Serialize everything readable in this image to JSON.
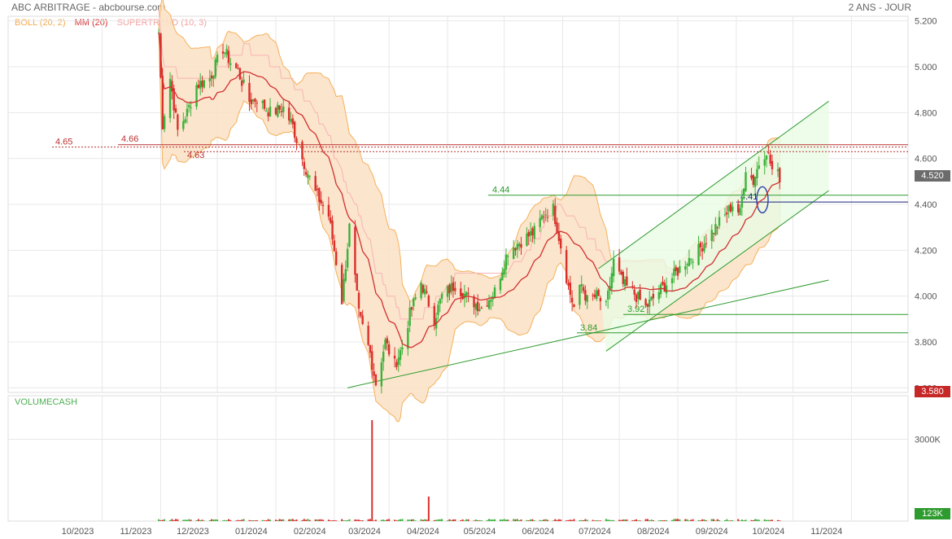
{
  "header": {
    "title": "ABC ARBITRAGE - abcbourse.com",
    "period": "2 ANS - JOUR"
  },
  "legend": {
    "boll": "BOLL (20, 2)",
    "mm": "MM (20)",
    "supertrend": "SUPERTREND (10, 3)",
    "volume": "VOLUMECASH"
  },
  "colors": {
    "boll_fill": "#fbe3c8",
    "boll_line": "#f5a94a",
    "mm": "#d32f2f",
    "supertrend": "#f7b4b4",
    "supertrend_green": "#8be07a",
    "up": "#3bb23b",
    "down": "#d9302c",
    "trend": "#2e9b2e"
  },
  "chart_data": {
    "type": "candlestick",
    "x_ticks": [
      "10/2023",
      "11/2023",
      "12/2023",
      "01/2024",
      "02/2024",
      "03/2024",
      "04/2024",
      "05/2024",
      "06/2024",
      "07/2024",
      "08/2024",
      "09/2024",
      "10/2024",
      "11/2024"
    ],
    "y_ticks": [
      "5.200",
      "5.000",
      "4.800",
      "4.600",
      "4.400",
      "4.200",
      "4.000",
      "3.800",
      "3.600"
    ],
    "ylim": [
      3.58,
      5.22
    ],
    "last_price": "4.520",
    "low_tag": "3.580",
    "levels": [
      {
        "label": "4.65",
        "value": 4.65
      },
      {
        "label": "4.66",
        "value": 4.66
      },
      {
        "label": "4.63",
        "value": 4.63
      },
      {
        "label": "4.44",
        "value": 4.44
      },
      {
        "label": "4.41",
        "value": 4.41
      },
      {
        "label": "3.92",
        "value": 3.92
      },
      {
        "label": "3.84",
        "value": 3.84
      }
    ],
    "close_path": [
      [
        "2023-10-31",
        5.15
      ],
      [
        "2023-11-02",
        4.75
      ],
      [
        "2023-11-06",
        4.95
      ],
      [
        "2023-11-10",
        4.72
      ],
      [
        "2023-11-15",
        4.8
      ],
      [
        "2023-11-20",
        4.92
      ],
      [
        "2023-11-27",
        4.95
      ],
      [
        "2023-12-04",
        5.08
      ],
      [
        "2023-12-08",
        5.02
      ],
      [
        "2023-12-12",
        4.98
      ],
      [
        "2023-12-18",
        4.85
      ],
      [
        "2023-12-22",
        4.86
      ],
      [
        "2023-12-29",
        4.8
      ],
      [
        "2024-01-05",
        4.82
      ],
      [
        "2024-01-10",
        4.74
      ],
      [
        "2024-01-15",
        4.6
      ],
      [
        "2024-01-22",
        4.45
      ],
      [
        "2024-01-29",
        4.35
      ],
      [
        "2024-02-02",
        4.15
      ],
      [
        "2024-02-05",
        3.98
      ],
      [
        "2024-02-09",
        4.3
      ],
      [
        "2024-02-14",
        3.92
      ],
      [
        "2024-02-20",
        3.75
      ],
      [
        "2024-02-23",
        3.62
      ],
      [
        "2024-02-28",
        3.8
      ],
      [
        "2024-03-04",
        3.7
      ],
      [
        "2024-03-08",
        3.78
      ],
      [
        "2024-03-12",
        3.92
      ],
      [
        "2024-03-18",
        4.06
      ],
      [
        "2024-03-25",
        3.9
      ],
      [
        "2024-03-29",
        4.0
      ],
      [
        "2024-04-05",
        4.05
      ],
      [
        "2024-04-12",
        3.99
      ],
      [
        "2024-04-19",
        3.95
      ],
      [
        "2024-04-26",
        4.02
      ],
      [
        "2024-05-03",
        4.2
      ],
      [
        "2024-05-10",
        4.24
      ],
      [
        "2024-05-17",
        4.28
      ],
      [
        "2024-05-22",
        4.36
      ],
      [
        "2024-05-27",
        4.38
      ],
      [
        "2024-05-31",
        4.22
      ],
      [
        "2024-06-04",
        4.04
      ],
      [
        "2024-06-07",
        3.95
      ],
      [
        "2024-06-11",
        4.05
      ],
      [
        "2024-06-14",
        3.98
      ],
      [
        "2024-06-19",
        4.0
      ],
      [
        "2024-06-24",
        3.95
      ],
      [
        "2024-06-28",
        4.15
      ],
      [
        "2024-07-03",
        4.05
      ],
      [
        "2024-07-08",
        4.02
      ],
      [
        "2024-07-15",
        3.95
      ],
      [
        "2024-07-22",
        4.02
      ],
      [
        "2024-07-29",
        4.08
      ],
      [
        "2024-08-05",
        4.15
      ],
      [
        "2024-08-12",
        4.2
      ],
      [
        "2024-08-19",
        4.28
      ],
      [
        "2024-08-26",
        4.35
      ],
      [
        "2024-08-30",
        4.4
      ],
      [
        "2024-09-03",
        4.36
      ],
      [
        "2024-09-06",
        4.56
      ],
      [
        "2024-09-10",
        4.5
      ],
      [
        "2024-09-13",
        4.58
      ],
      [
        "2024-09-17",
        4.64
      ],
      [
        "2024-09-20",
        4.55
      ],
      [
        "2024-09-24",
        4.52
      ]
    ],
    "volume_ticks": [
      "3000K"
    ],
    "volume_last": "123K",
    "volume_spike": [
      [
        "2024-02-21",
        3700
      ],
      [
        "2024-03-22",
        900
      ]
    ]
  }
}
